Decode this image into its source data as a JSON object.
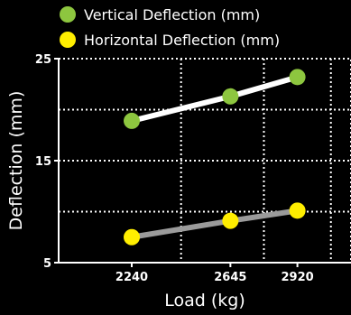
{
  "chart_data": {
    "type": "line",
    "title": "",
    "xlabel": "Load (kg)",
    "ylabel": "Deflection (mm)",
    "categories": [
      "2240",
      "2645",
      "2920"
    ],
    "x": [
      2240,
      2645,
      2920
    ],
    "xlim": [
      1940,
      3140
    ],
    "ylim": [
      5,
      25
    ],
    "yticks": [
      5,
      15,
      25
    ],
    "grid": true,
    "legend_position": "top-left",
    "background": "#000000",
    "series": [
      {
        "name": "Vertical Deflection (mm)",
        "values": [
          18.9,
          21.3,
          23.2
        ],
        "line_color": "#ffffff",
        "marker_color": "#8dc63f"
      },
      {
        "name": "Horizontal Deflection (mm)",
        "values": [
          7.5,
          9.1,
          10.1
        ],
        "line_color": "#9b9b9b",
        "marker_color": "#ffee00"
      }
    ]
  }
}
